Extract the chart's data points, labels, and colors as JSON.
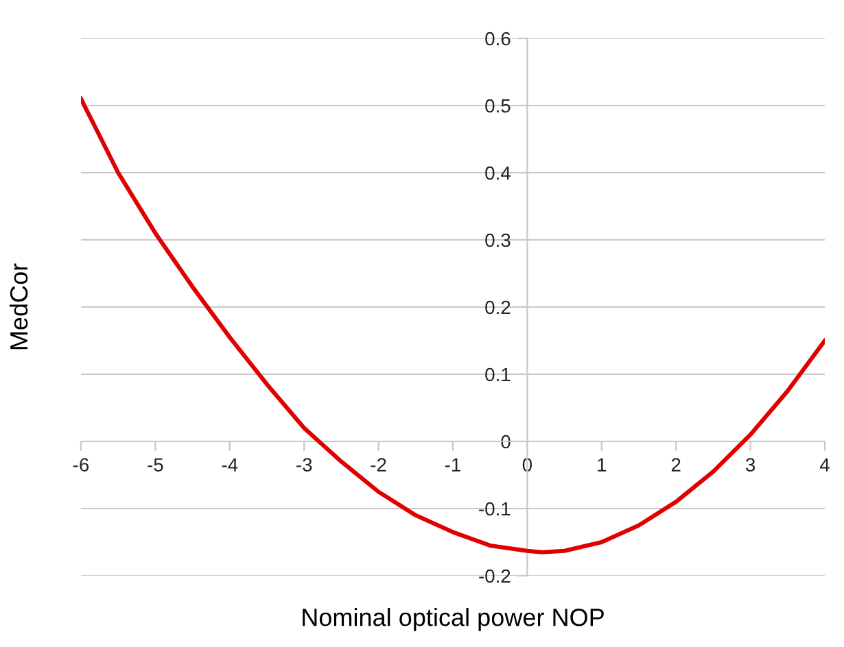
{
  "chart_data": {
    "type": "line",
    "xlabel": "Nominal optical power NOP",
    "ylabel": "MedCor",
    "x": [
      -6,
      -5.5,
      -5,
      -4.5,
      -4,
      -3.5,
      -3,
      -2.5,
      -2,
      -1.5,
      -1,
      -0.5,
      0,
      0.2,
      0.5,
      1,
      1.5,
      2,
      2.5,
      3,
      3.5,
      4
    ],
    "series": [
      {
        "color": "#e00000",
        "values": [
          0.51,
          0.4,
          0.31,
          0.23,
          0.155,
          0.085,
          0.02,
          -0.03,
          -0.075,
          -0.11,
          -0.135,
          -0.155,
          -0.163,
          -0.165,
          -0.163,
          -0.15,
          -0.125,
          -0.09,
          -0.045,
          0.01,
          0.075,
          0.15
        ]
      }
    ],
    "xlim": [
      -6,
      4
    ],
    "ylim": [
      -0.2,
      0.6
    ],
    "xticks": [
      -6,
      -5,
      -4,
      -3,
      -2,
      -1,
      0,
      1,
      2,
      3,
      4
    ],
    "yticks": [
      -0.2,
      -0.1,
      0,
      0.1,
      0.2,
      0.3,
      0.4,
      0.5,
      0.6
    ],
    "grid": "y",
    "marker": "none",
    "line_style": "solid"
  }
}
